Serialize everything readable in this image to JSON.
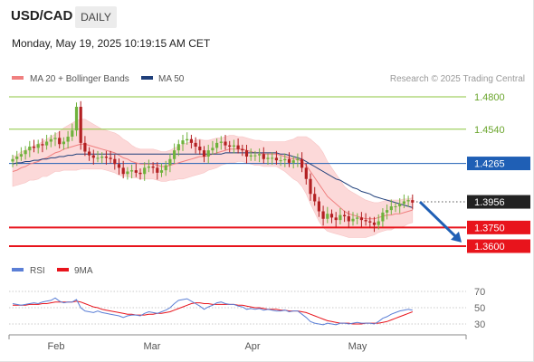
{
  "header": {
    "symbol": "USD/CAD",
    "timeframe": "DAILY",
    "datetime": "Monday, May 19, 2025 10:19:15 AM CET"
  },
  "colors": {
    "support": "#e8141c",
    "pivot": "#1f5fb5",
    "resistance": "#8cc63f",
    "bullish": "#6fb23c",
    "bearish": "#b32022",
    "ma50": "#1f3f7a",
    "ma20": "#f08080",
    "bands": "#fcd9d9",
    "rsi": "#5b7fd6",
    "rsi_ma": "#e8141c"
  },
  "chart_data": [
    {
      "type": "candlestick",
      "source": "Research © 2025 Trading Central",
      "legend": [
        {
          "name": "MA 20 + Bollinger Bands",
          "color": "#f08080"
        },
        {
          "name": "MA 50",
          "color": "#1f3f7a"
        }
      ],
      "x_ticks": [
        "Feb",
        "Mar",
        "Apr",
        "May"
      ],
      "ylim": [
        1.352,
        1.494
      ],
      "levels": [
        {
          "label": "1.4800",
          "value": 1.48,
          "kind": "resistance"
        },
        {
          "label": "1.4540",
          "value": 1.454,
          "kind": "resistance"
        },
        {
          "label": "1.4265",
          "value": 1.4265,
          "kind": "pivot"
        },
        {
          "label": "1.3956",
          "value": 1.3956,
          "kind": "last"
        },
        {
          "label": "1.3750",
          "value": 1.375,
          "kind": "support"
        },
        {
          "label": "1.3600",
          "value": 1.36,
          "kind": "support"
        }
      ],
      "forecast": {
        "from": 1.3956,
        "to": 1.363,
        "direction": "down"
      },
      "close": [
        1.43,
        1.432,
        1.434,
        1.437,
        1.44,
        1.439,
        1.442,
        1.441,
        1.444,
        1.446,
        1.447,
        1.442,
        1.444,
        1.448,
        1.453,
        1.472,
        1.443,
        1.436,
        1.433,
        1.431,
        1.431,
        1.432,
        1.431,
        1.43,
        1.426,
        1.423,
        1.418,
        1.42,
        1.421,
        1.419,
        1.418,
        1.423,
        1.424,
        1.423,
        1.419,
        1.421,
        1.425,
        1.43,
        1.437,
        1.442,
        1.445,
        1.446,
        1.443,
        1.44,
        1.437,
        1.432,
        1.437,
        1.439,
        1.443,
        1.444,
        1.441,
        1.44,
        1.441,
        1.438,
        1.437,
        1.432,
        1.433,
        1.433,
        1.434,
        1.43,
        1.431,
        1.431,
        1.429,
        1.429,
        1.43,
        1.427,
        1.429,
        1.43,
        1.423,
        1.414,
        1.402,
        1.396,
        1.388,
        1.382,
        1.386,
        1.383,
        1.381,
        1.385,
        1.384,
        1.38,
        1.382,
        1.383,
        1.381,
        1.38,
        1.379,
        1.377,
        1.38,
        1.387,
        1.389,
        1.392,
        1.392,
        1.394,
        1.396,
        1.397,
        1.395
      ],
      "ma20": [
        1.42,
        1.421,
        1.423,
        1.424,
        1.426,
        1.427,
        1.428,
        1.43,
        1.431,
        1.433,
        1.435,
        1.436,
        1.438,
        1.439,
        1.44,
        1.441,
        1.442,
        1.442,
        1.441,
        1.44,
        1.439,
        1.438,
        1.437,
        1.436,
        1.435,
        1.433,
        1.431,
        1.43,
        1.428,
        1.427,
        1.426,
        1.426,
        1.426,
        1.426,
        1.425,
        1.424,
        1.424,
        1.425,
        1.426,
        1.427,
        1.428,
        1.429,
        1.43,
        1.431,
        1.432,
        1.432,
        1.433,
        1.434,
        1.435,
        1.436,
        1.437,
        1.438,
        1.438,
        1.438,
        1.438,
        1.437,
        1.436,
        1.435,
        1.435,
        1.434,
        1.434,
        1.434,
        1.434,
        1.433,
        1.432,
        1.431,
        1.43,
        1.43,
        1.428,
        1.425,
        1.42,
        1.415,
        1.41,
        1.405,
        1.4,
        1.397,
        1.394,
        1.391,
        1.388,
        1.386,
        1.385,
        1.384,
        1.383,
        1.382,
        1.382,
        1.382,
        1.383,
        1.384,
        1.385,
        1.385,
        1.386,
        1.386,
        1.387,
        1.388,
        1.389
      ],
      "bb_width": [
        0.012,
        0.012,
        0.013,
        0.013,
        0.013,
        0.014,
        0.014,
        0.014,
        0.015,
        0.015,
        0.015,
        0.016,
        0.017,
        0.018,
        0.019,
        0.02,
        0.02,
        0.02,
        0.019,
        0.018,
        0.017,
        0.016,
        0.016,
        0.016,
        0.016,
        0.016,
        0.015,
        0.014,
        0.013,
        0.012,
        0.012,
        0.012,
        0.012,
        0.012,
        0.012,
        0.012,
        0.012,
        0.012,
        0.013,
        0.013,
        0.014,
        0.014,
        0.014,
        0.014,
        0.014,
        0.013,
        0.012,
        0.012,
        0.012,
        0.011,
        0.011,
        0.011,
        0.011,
        0.01,
        0.01,
        0.01,
        0.01,
        0.01,
        0.01,
        0.01,
        0.01,
        0.01,
        0.01,
        0.011,
        0.012,
        0.014,
        0.016,
        0.018,
        0.02,
        0.023,
        0.026,
        0.028,
        0.03,
        0.03,
        0.028,
        0.026,
        0.024,
        0.022,
        0.02,
        0.019,
        0.018,
        0.017,
        0.016,
        0.015,
        0.014,
        0.013,
        0.012,
        0.012,
        0.012,
        0.012,
        0.011,
        0.011,
        0.011,
        0.01,
        0.01
      ],
      "ma50": [
        1.426,
        1.427,
        1.427,
        1.428,
        1.428,
        1.429,
        1.429,
        1.43,
        1.43,
        1.431,
        1.431,
        1.432,
        1.432,
        1.433,
        1.433,
        1.434,
        1.434,
        1.434,
        1.434,
        1.434,
        1.434,
        1.434,
        1.434,
        1.434,
        1.434,
        1.434,
        1.434,
        1.434,
        1.434,
        1.434,
        1.434,
        1.434,
        1.434,
        1.434,
        1.434,
        1.434,
        1.434,
        1.434,
        1.434,
        1.434,
        1.434,
        1.434,
        1.434,
        1.434,
        1.434,
        1.434,
        1.434,
        1.434,
        1.434,
        1.434,
        1.435,
        1.435,
        1.435,
        1.435,
        1.435,
        1.435,
        1.435,
        1.435,
        1.435,
        1.435,
        1.435,
        1.435,
        1.435,
        1.434,
        1.434,
        1.433,
        1.432,
        1.431,
        1.43,
        1.428,
        1.426,
        1.424,
        1.422,
        1.42,
        1.418,
        1.416,
        1.414,
        1.413,
        1.411,
        1.409,
        1.407,
        1.406,
        1.404,
        1.403,
        1.402,
        1.4,
        1.399,
        1.398,
        1.397,
        1.396,
        1.395,
        1.394,
        1.393,
        1.392,
        1.391
      ]
    },
    {
      "type": "line",
      "legend": [
        {
          "name": "RSI",
          "color": "#5b7fd6"
        },
        {
          "name": "9MA",
          "color": "#e8141c"
        }
      ],
      "ylim": [
        22,
        76
      ],
      "y_ticks": [
        70,
        50,
        30
      ],
      "rsi": [
        55,
        54,
        53,
        54,
        55,
        56,
        55,
        57,
        58,
        59,
        62,
        58,
        56,
        57,
        57,
        60,
        50,
        46,
        45,
        44,
        46,
        44,
        43,
        42,
        41,
        40,
        38,
        40,
        41,
        41,
        40,
        43,
        45,
        44,
        43,
        45,
        47,
        50,
        55,
        59,
        60,
        61,
        58,
        55,
        52,
        48,
        51,
        53,
        56,
        57,
        55,
        54,
        54,
        52,
        51,
        48,
        49,
        48,
        49,
        47,
        48,
        47,
        46,
        46,
        47,
        45,
        46,
        46,
        42,
        38,
        33,
        31,
        30,
        29,
        31,
        30,
        29,
        31,
        31,
        30,
        31,
        32,
        31,
        31,
        31,
        30,
        33,
        37,
        39,
        42,
        44,
        46,
        47,
        48,
        47
      ],
      "rsi_ma": [
        53,
        53,
        53,
        53,
        54,
        54,
        54,
        55,
        55,
        56,
        57,
        57,
        57,
        57,
        57,
        58,
        57,
        55,
        53,
        51,
        50,
        48,
        47,
        46,
        45,
        44,
        43,
        42,
        42,
        41,
        41,
        41,
        42,
        42,
        43,
        43,
        44,
        45,
        47,
        49,
        51,
        53,
        55,
        56,
        56,
        55,
        55,
        54,
        54,
        54,
        54,
        54,
        54,
        53,
        53,
        52,
        51,
        50,
        50,
        49,
        48,
        48,
        48,
        47,
        47,
        46,
        46,
        46,
        45,
        44,
        42,
        40,
        38,
        36,
        34,
        33,
        32,
        31,
        31,
        31,
        30,
        30,
        30,
        31,
        31,
        31,
        31,
        32,
        33,
        35,
        37,
        39,
        41,
        43,
        45
      ]
    }
  ]
}
